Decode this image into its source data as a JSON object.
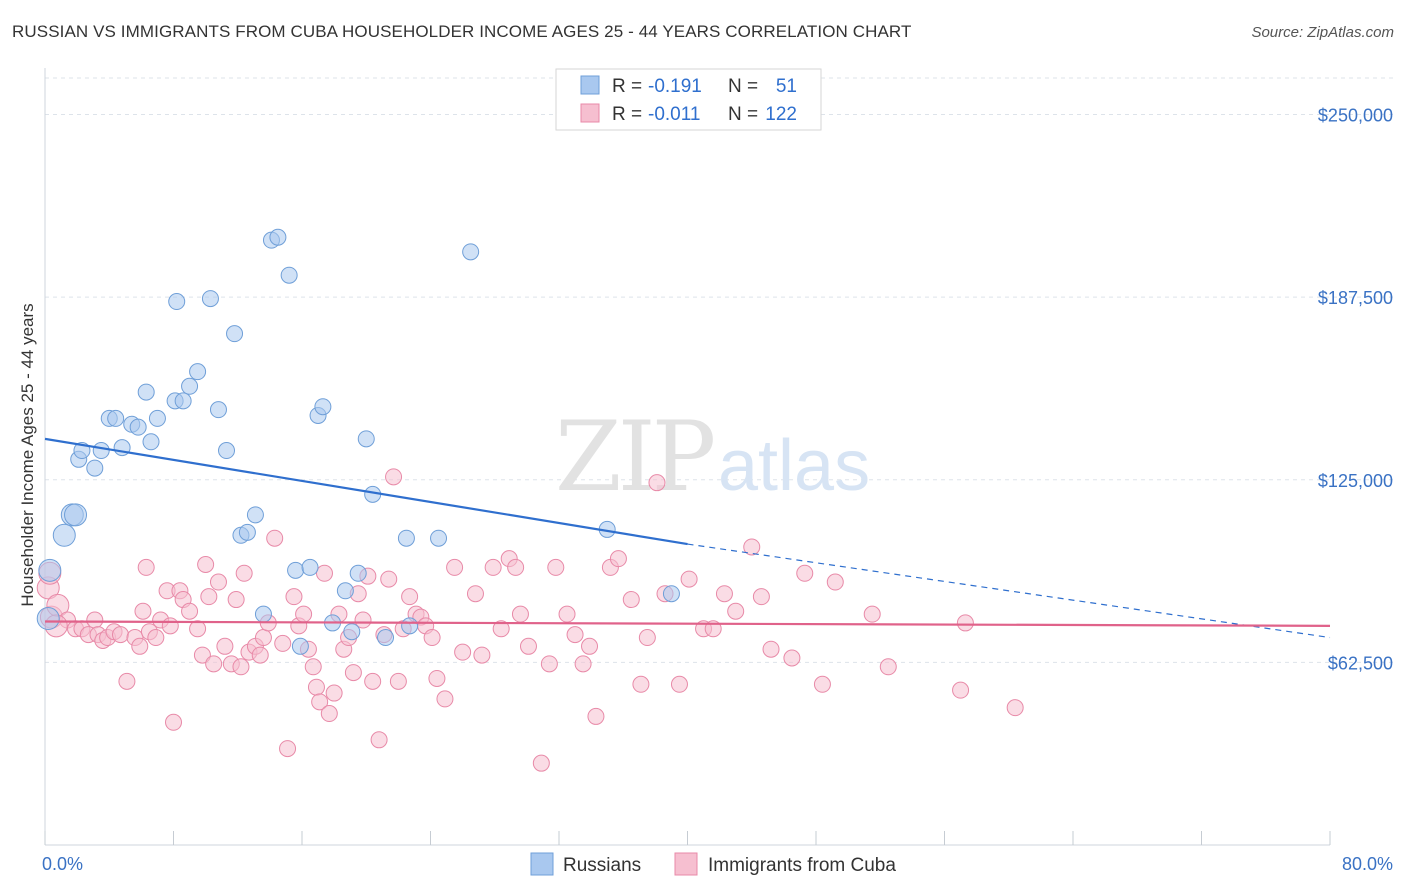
{
  "title": "RUSSIAN VS IMMIGRANTS FROM CUBA HOUSEHOLDER INCOME AGES 25 - 44 YEARS CORRELATION CHART",
  "source": "Source: ZipAtlas.com",
  "watermark": {
    "zip": "ZIP",
    "atlas": "atlas"
  },
  "colors": {
    "russians_fill": "#a9c8ef",
    "russians_stroke": "#6f9fd8",
    "russians_line": "#2f6fce",
    "cuba_fill": "#f6bfd0",
    "cuba_stroke": "#e88aa8",
    "cuba_line": "#e0628a",
    "grid": "#dde3ea",
    "accent_text": "#3a72c4"
  },
  "legend": {
    "r_label": "R =",
    "n_label": "N =",
    "rows": [
      {
        "series": "Russians",
        "r": "-0.191",
        "n": "51"
      },
      {
        "series": "Immigrants from Cuba",
        "r": "-0.011",
        "n": "122"
      }
    ]
  },
  "chart_data": {
    "type": "scatter",
    "title": "RUSSIAN VS IMMIGRANTS FROM CUBA HOUSEHOLDER INCOME AGES 25 - 44 YEARS CORRELATION CHART",
    "xlabel": "",
    "ylabel": "Householder Income Ages 25 - 44 years",
    "xlim": [
      0,
      80
    ],
    "ylim": [
      0,
      262500
    ],
    "x_tick_labels": [
      "0.0%",
      "80.0%"
    ],
    "y_ticks": [
      62500,
      125000,
      187500,
      250000
    ],
    "y_tick_labels": [
      "$62,500",
      "$125,000",
      "$187,500",
      "$250,000"
    ],
    "grid": true,
    "legend_position": "top-center",
    "series": [
      {
        "name": "Russians",
        "points": [
          [
            0.2,
            77500
          ],
          [
            0.3,
            94000
          ],
          [
            1.2,
            106000
          ],
          [
            1.7,
            113000
          ],
          [
            1.9,
            113000
          ],
          [
            2.1,
            132000
          ],
          [
            2.3,
            135000
          ],
          [
            3.1,
            129000
          ],
          [
            3.5,
            135000
          ],
          [
            4.0,
            146000
          ],
          [
            4.4,
            146000
          ],
          [
            4.8,
            136000
          ],
          [
            5.4,
            144000
          ],
          [
            5.8,
            143000
          ],
          [
            6.3,
            155000
          ],
          [
            6.6,
            138000
          ],
          [
            7.0,
            146000
          ],
          [
            8.1,
            152000
          ],
          [
            8.2,
            186000
          ],
          [
            8.6,
            152000
          ],
          [
            9.0,
            157000
          ],
          [
            9.5,
            162000
          ],
          [
            10.3,
            187000
          ],
          [
            10.8,
            149000
          ],
          [
            11.3,
            135000
          ],
          [
            11.8,
            175000
          ],
          [
            12.2,
            106000
          ],
          [
            12.6,
            107000
          ],
          [
            13.1,
            113000
          ],
          [
            13.6,
            79000
          ],
          [
            14.1,
            207000
          ],
          [
            14.5,
            208000
          ],
          [
            15.2,
            195000
          ],
          [
            15.6,
            94000
          ],
          [
            15.9,
            68000
          ],
          [
            16.5,
            95000
          ],
          [
            17.0,
            147000
          ],
          [
            17.3,
            150000
          ],
          [
            17.9,
            76000
          ],
          [
            18.7,
            87000
          ],
          [
            19.1,
            73000
          ],
          [
            19.5,
            93000
          ],
          [
            20.0,
            139000
          ],
          [
            20.4,
            120000
          ],
          [
            21.2,
            71000
          ],
          [
            22.5,
            105000
          ],
          [
            22.7,
            75000
          ],
          [
            24.5,
            105000
          ],
          [
            26.5,
            203000
          ],
          [
            35.0,
            108000
          ],
          [
            39.0,
            86000
          ]
        ],
        "trend": {
          "x0": 0,
          "y0": 139000,
          "x1": 40,
          "y1": 103000,
          "dashed_to_x": 80,
          "dashed_to_y": 71000
        }
      },
      {
        "name": "Immigrants from Cuba",
        "points": [
          [
            0.2,
            88000
          ],
          [
            0.3,
            93000
          ],
          [
            0.4,
            78000
          ],
          [
            0.8,
            82000
          ],
          [
            1.4,
            77000
          ],
          [
            1.9,
            74000
          ],
          [
            2.3,
            74000
          ],
          [
            2.7,
            72000
          ],
          [
            3.1,
            77000
          ],
          [
            3.3,
            72000
          ],
          [
            3.6,
            70000
          ],
          [
            3.9,
            71000
          ],
          [
            4.3,
            73000
          ],
          [
            4.7,
            72000
          ],
          [
            5.1,
            56000
          ],
          [
            5.6,
            71000
          ],
          [
            5.9,
            68000
          ],
          [
            6.1,
            80000
          ],
          [
            6.3,
            95000
          ],
          [
            6.5,
            73000
          ],
          [
            6.9,
            71000
          ],
          [
            7.2,
            77000
          ],
          [
            7.6,
            87000
          ],
          [
            7.8,
            75000
          ],
          [
            8.0,
            42000
          ],
          [
            8.4,
            87000
          ],
          [
            8.6,
            84000
          ],
          [
            9.0,
            80000
          ],
          [
            9.5,
            74000
          ],
          [
            9.8,
            65000
          ],
          [
            10.0,
            96000
          ],
          [
            10.2,
            85000
          ],
          [
            10.5,
            62000
          ],
          [
            10.8,
            90000
          ],
          [
            11.2,
            68000
          ],
          [
            11.6,
            62000
          ],
          [
            11.9,
            84000
          ],
          [
            12.2,
            61000
          ],
          [
            12.4,
            93000
          ],
          [
            12.7,
            66000
          ],
          [
            13.1,
            68000
          ],
          [
            13.4,
            65000
          ],
          [
            13.6,
            71000
          ],
          [
            13.9,
            76000
          ],
          [
            14.3,
            105000
          ],
          [
            14.8,
            69000
          ],
          [
            15.1,
            33000
          ],
          [
            15.5,
            85000
          ],
          [
            15.8,
            75000
          ],
          [
            16.1,
            79000
          ],
          [
            16.4,
            67000
          ],
          [
            16.7,
            61000
          ],
          [
            16.9,
            54000
          ],
          [
            17.1,
            49000
          ],
          [
            17.4,
            93000
          ],
          [
            17.7,
            45000
          ],
          [
            18.0,
            52000
          ],
          [
            18.3,
            79000
          ],
          [
            18.6,
            67000
          ],
          [
            18.9,
            71000
          ],
          [
            19.2,
            59000
          ],
          [
            19.5,
            86000
          ],
          [
            19.8,
            77000
          ],
          [
            20.1,
            92000
          ],
          [
            20.4,
            56000
          ],
          [
            20.8,
            36000
          ],
          [
            21.1,
            72000
          ],
          [
            21.4,
            91000
          ],
          [
            21.7,
            126000
          ],
          [
            22.0,
            56000
          ],
          [
            22.3,
            74000
          ],
          [
            22.7,
            85000
          ],
          [
            23.1,
            79000
          ],
          [
            23.4,
            78000
          ],
          [
            23.7,
            75000
          ],
          [
            24.1,
            71000
          ],
          [
            24.4,
            57000
          ],
          [
            24.9,
            50000
          ],
          [
            25.5,
            95000
          ],
          [
            26.0,
            66000
          ],
          [
            26.8,
            86000
          ],
          [
            27.2,
            65000
          ],
          [
            27.9,
            95000
          ],
          [
            28.4,
            74000
          ],
          [
            28.9,
            98000
          ],
          [
            29.3,
            95000
          ],
          [
            29.6,
            79000
          ],
          [
            30.1,
            68000
          ],
          [
            30.9,
            28000
          ],
          [
            31.4,
            62000
          ],
          [
            31.8,
            95000
          ],
          [
            32.5,
            79000
          ],
          [
            33.0,
            72000
          ],
          [
            33.5,
            62000
          ],
          [
            33.9,
            68000
          ],
          [
            34.3,
            44000
          ],
          [
            35.2,
            95000
          ],
          [
            35.7,
            98000
          ],
          [
            36.5,
            84000
          ],
          [
            37.1,
            55000
          ],
          [
            37.5,
            71000
          ],
          [
            38.1,
            124000
          ],
          [
            38.6,
            86000
          ],
          [
            39.5,
            55000
          ],
          [
            40.1,
            91000
          ],
          [
            41.0,
            74000
          ],
          [
            41.6,
            74000
          ],
          [
            42.3,
            86000
          ],
          [
            43.0,
            80000
          ],
          [
            44.0,
            102000
          ],
          [
            44.6,
            85000
          ],
          [
            45.2,
            67000
          ],
          [
            46.5,
            64000
          ],
          [
            47.3,
            93000
          ],
          [
            48.4,
            55000
          ],
          [
            49.2,
            90000
          ],
          [
            51.5,
            79000
          ],
          [
            52.5,
            61000
          ],
          [
            57.0,
            53000
          ],
          [
            57.3,
            76000
          ],
          [
            60.4,
            47000
          ],
          [
            0.7,
            75000
          ]
        ],
        "trend": {
          "x0": 0,
          "y0": 76500,
          "x1": 80,
          "y1": 75000
        }
      }
    ]
  }
}
